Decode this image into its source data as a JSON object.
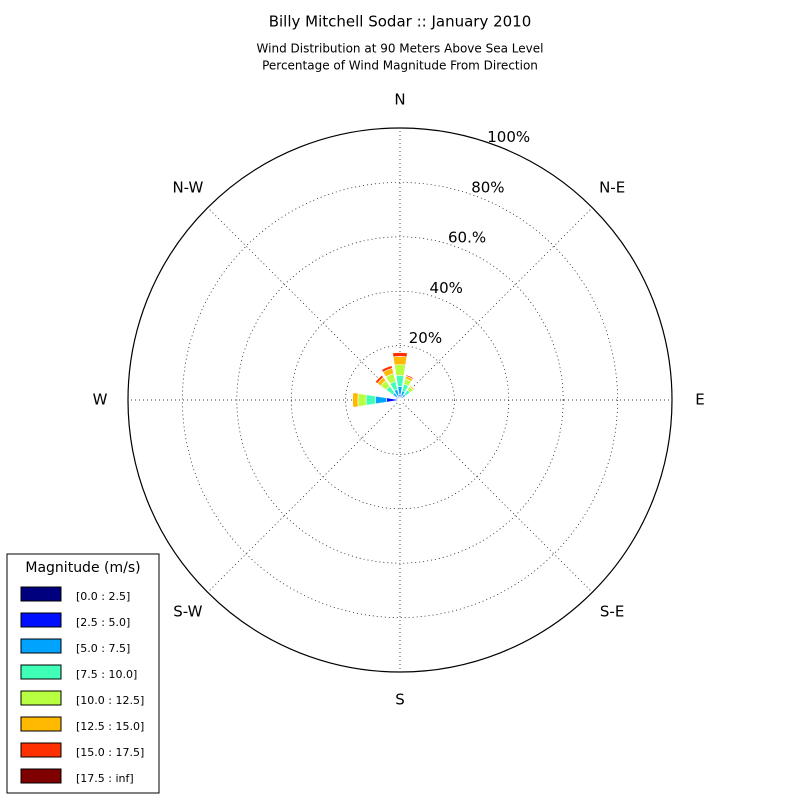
{
  "chart_data": {
    "type": "windrose",
    "title": "Billy Mitchell Sodar :: January 2010",
    "subtitle_lines": [
      "Wind Distribution at 90 Meters Above Sea Level",
      "Percentage of Wind Magnitude From Direction"
    ],
    "x": [
      0,
      22.5,
      45,
      67.5,
      90,
      112.5,
      135,
      157.5,
      180,
      202.5,
      225,
      247.5,
      270,
      292.5,
      315,
      337.5
    ],
    "xticks": [
      {
        "value": 0,
        "label": "N"
      },
      {
        "value": 45,
        "label": "N-E"
      },
      {
        "value": 90,
        "label": "E"
      },
      {
        "value": 135,
        "label": "S-E"
      },
      {
        "value": 180,
        "label": "S"
      },
      {
        "value": 225,
        "label": "S-W"
      },
      {
        "value": 270,
        "label": "W"
      },
      {
        "value": 315,
        "label": "N-W"
      }
    ],
    "ylim": [
      0,
      100
    ],
    "yticks": [
      {
        "value": 20,
        "label": "20%"
      },
      {
        "value": 40,
        "label": "40%"
      },
      {
        "value": 60,
        "label": "60.%"
      },
      {
        "value": 80,
        "label": "80%"
      },
      {
        "value": 100,
        "label": "100%"
      }
    ],
    "grid": true,
    "legend_title": "Magnitude (m/s)",
    "legend_position": "lower left",
    "series": [
      {
        "name": "[0.0 : 2.5]",
        "color": "#00007f",
        "values": [
          0.5,
          0.5,
          0.3,
          0.2,
          0.2,
          0.1,
          0.1,
          0.1,
          0.1,
          0.2,
          0.3,
          0.5,
          1,
          0.5,
          0.3,
          0.5
        ]
      },
      {
        "name": "[2.5 : 5.0]",
        "color": "#0010ff",
        "values": [
          1.5,
          1,
          0.8,
          0.2,
          0.1,
          0,
          0,
          0,
          0,
          0.2,
          0.3,
          0.5,
          4,
          0.8,
          1,
          1
        ]
      },
      {
        "name": "[5.0 : 7.5]",
        "color": "#00a4ff",
        "values": [
          3,
          2,
          1.5,
          0.3,
          0,
          0,
          0,
          0,
          0,
          0,
          0,
          0.3,
          4,
          0.5,
          2,
          2.5
        ]
      },
      {
        "name": "[7.5 : 10.0]",
        "color": "#40ffb7",
        "values": [
          4,
          2.5,
          2,
          0.2,
          0,
          0,
          0,
          0,
          0,
          0,
          0,
          0,
          3.5,
          0.2,
          3,
          3
        ]
      },
      {
        "name": "[10.0 : 12.5]",
        "color": "#b7ff40",
        "values": [
          4,
          2,
          1.5,
          0,
          0,
          0,
          0,
          0,
          0,
          0,
          0,
          0,
          3,
          0,
          2.5,
          3
        ]
      },
      {
        "name": "[12.5 : 15.0]",
        "color": "#ffb900",
        "values": [
          3,
          1,
          0.5,
          0,
          0,
          0,
          0,
          0,
          0,
          0,
          0,
          0,
          2,
          0,
          1.5,
          2
        ]
      },
      {
        "name": "[15.0 : 17.5]",
        "color": "#ff3000",
        "values": [
          1.5,
          0.5,
          0.2,
          0,
          0,
          0,
          0,
          0,
          0,
          0,
          0,
          0,
          0,
          0,
          1,
          1
        ]
      },
      {
        "name": "[17.5 : inf]",
        "color": "#7f0000",
        "values": [
          0,
          0,
          0,
          0,
          0,
          0,
          0,
          0,
          0,
          0,
          0,
          0,
          0,
          0,
          0,
          0
        ]
      }
    ]
  }
}
